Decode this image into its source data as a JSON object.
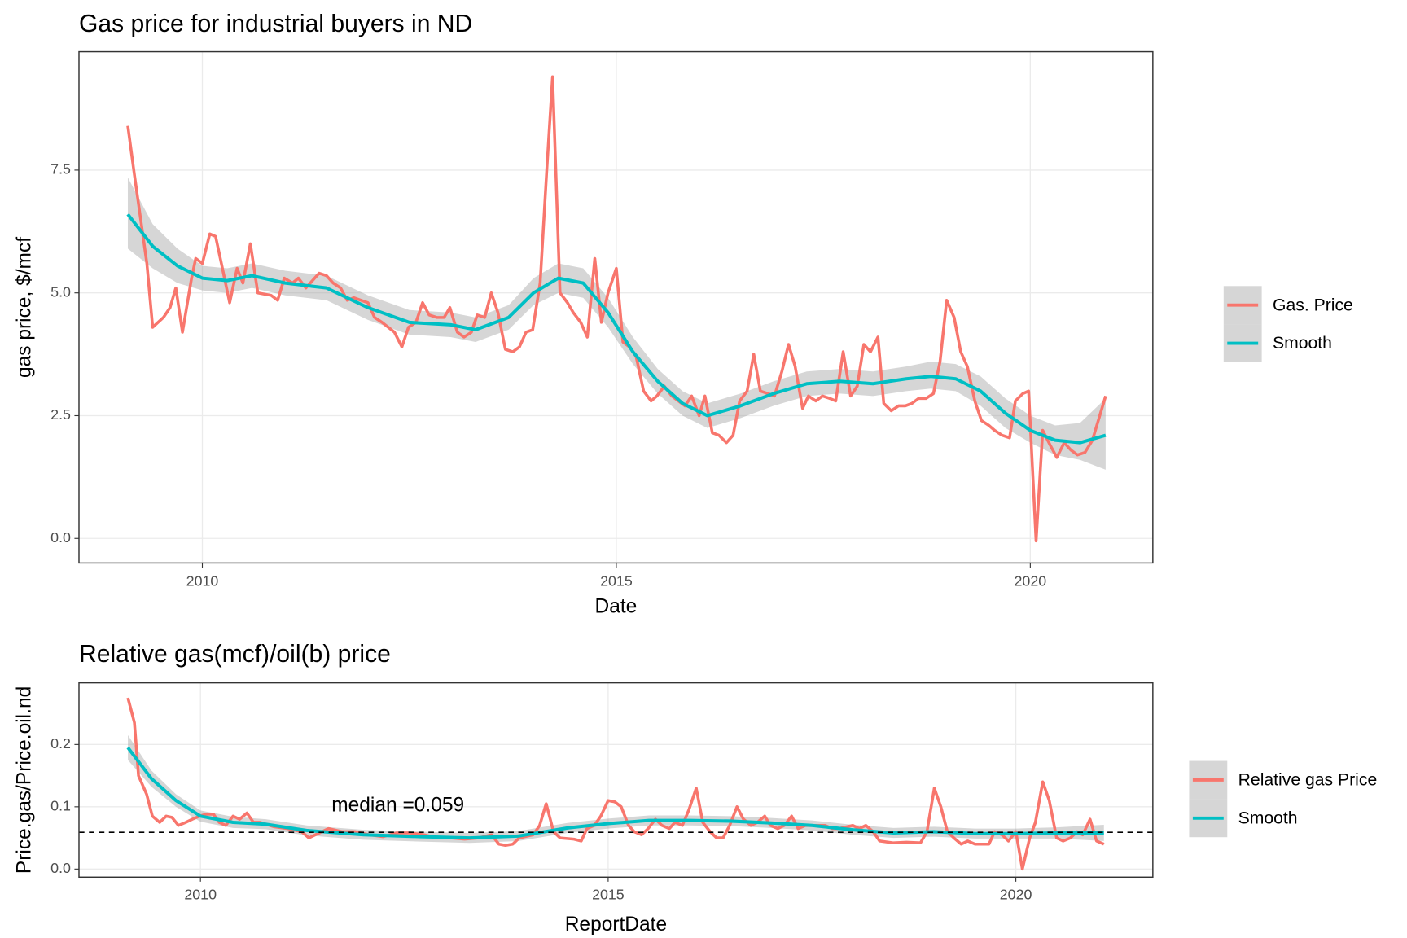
{
  "chart_data": [
    {
      "type": "line",
      "title": "Gas price for industrial buyers in ND",
      "xlabel": "Date",
      "ylabel": "gas price, $/mcf",
      "xlim": [
        2008.51,
        2021.48
      ],
      "ylim": [
        -0.5,
        9.91
      ],
      "xticks": [
        2010,
        2015,
        2020
      ],
      "yticks": [
        {
          "value": 0,
          "label": "0.0"
        },
        2.5,
        {
          "value": 5,
          "label": "5.0"
        },
        7.5
      ],
      "grid": true,
      "legend": "right",
      "series": [
        {
          "name": "Gas. Price",
          "color": "#F8766D",
          "x": [
            2009.1,
            2009.18,
            2009.23,
            2009.33,
            2009.4,
            2009.53,
            2009.61,
            2009.68,
            2009.76,
            2009.87,
            2009.92,
            2010.0,
            2010.09,
            2010.16,
            2010.23,
            2010.33,
            2010.42,
            2010.49,
            2010.58,
            2010.67,
            2010.83,
            2010.91,
            2010.99,
            2011.09,
            2011.16,
            2011.25,
            2011.41,
            2011.5,
            2011.58,
            2011.67,
            2011.75,
            2011.83,
            2012.0,
            2012.08,
            2012.17,
            2012.32,
            2012.41,
            2012.49,
            2012.58,
            2012.66,
            2012.74,
            2012.83,
            2012.92,
            2012.99,
            2013.08,
            2013.16,
            2013.25,
            2013.32,
            2013.41,
            2013.49,
            2013.57,
            2013.66,
            2013.75,
            2013.83,
            2013.91,
            2013.99,
            2014.08,
            2014.16,
            2014.23,
            2014.32,
            2014.41,
            2014.48,
            2014.57,
            2014.65,
            2014.74,
            2014.82,
            2014.9,
            2015.0,
            2015.08,
            2015.16,
            2015.24,
            2015.33,
            2015.42,
            2015.49,
            2015.58,
            2015.67,
            2015.75,
            2015.83,
            2015.91,
            2016.0,
            2016.07,
            2016.16,
            2016.24,
            2016.33,
            2016.41,
            2016.49,
            2016.58,
            2016.66,
            2016.74,
            2016.83,
            2016.91,
            2017.0,
            2017.08,
            2017.16,
            2017.25,
            2017.32,
            2017.41,
            2017.49,
            2017.58,
            2017.65,
            2017.74,
            2017.83,
            2017.91,
            2017.99,
            2018.07,
            2018.16,
            2018.23,
            2018.32,
            2018.41,
            2018.49,
            2018.57,
            2018.65,
            2018.74,
            2018.83,
            2018.91,
            2018.99,
            2019.08,
            2019.16,
            2019.24,
            2019.33,
            2019.41,
            2019.5,
            2019.57,
            2019.66,
            2019.75,
            2019.82,
            2019.91,
            2019.98,
            2020.07,
            2020.15,
            2020.24,
            2020.32,
            2020.41,
            2020.49,
            2020.57,
            2020.66,
            2020.75,
            2020.91
          ],
          "values": [
            8.4,
            7.4,
            6.8,
            5.6,
            4.3,
            4.5,
            4.7,
            5.1,
            4.2,
            5.3,
            5.7,
            5.6,
            6.2,
            6.15,
            5.6,
            4.8,
            5.5,
            5.2,
            6.0,
            5.0,
            4.95,
            4.85,
            5.3,
            5.2,
            5.3,
            5.1,
            5.4,
            5.35,
            5.2,
            5.1,
            4.85,
            4.9,
            4.8,
            4.5,
            4.4,
            4.2,
            3.9,
            4.3,
            4.4,
            4.8,
            4.55,
            4.5,
            4.5,
            4.7,
            4.2,
            4.1,
            4.2,
            4.55,
            4.5,
            5.0,
            4.6,
            3.85,
            3.8,
            3.9,
            4.2,
            4.25,
            5.2,
            7.5,
            9.4,
            5.0,
            4.8,
            4.6,
            4.4,
            4.1,
            5.7,
            4.4,
            5.0,
            5.5,
            4.0,
            3.9,
            3.7,
            3.0,
            2.8,
            2.9,
            3.1,
            2.9,
            2.8,
            2.7,
            2.9,
            2.5,
            2.9,
            2.15,
            2.1,
            1.95,
            2.1,
            2.8,
            3.0,
            3.75,
            3.0,
            2.95,
            2.9,
            3.4,
            3.95,
            3.5,
            2.65,
            2.9,
            2.8,
            2.9,
            2.85,
            2.8,
            3.8,
            2.9,
            3.1,
            3.95,
            3.8,
            4.1,
            2.75,
            2.6,
            2.7,
            2.7,
            2.75,
            2.85,
            2.85,
            2.95,
            3.6,
            4.85,
            4.5,
            3.8,
            3.5,
            2.8,
            2.4,
            2.3,
            2.2,
            2.1,
            2.05,
            2.8,
            2.95,
            3.0,
            -0.05,
            2.2,
            1.9,
            1.65,
            1.95,
            1.8,
            1.7,
            1.75,
            2.0,
            2.9
          ]
        },
        {
          "name": "Smooth",
          "color": "#00BFC4",
          "band_color": "#999999",
          "x": [
            2009.1,
            2009.4,
            2009.7,
            2010.0,
            2010.3,
            2010.6,
            2011.0,
            2011.5,
            2012.0,
            2012.5,
            2013.0,
            2013.3,
            2013.7,
            2014.0,
            2014.3,
            2014.6,
            2014.9,
            2015.2,
            2015.5,
            2015.8,
            2016.1,
            2016.5,
            2016.9,
            2017.3,
            2017.7,
            2018.1,
            2018.5,
            2018.8,
            2019.1,
            2019.4,
            2019.7,
            2020.0,
            2020.3,
            2020.6,
            2020.91
          ],
          "values": [
            6.6,
            5.95,
            5.55,
            5.3,
            5.25,
            5.35,
            5.2,
            5.1,
            4.7,
            4.4,
            4.35,
            4.25,
            4.5,
            5.0,
            5.3,
            5.2,
            4.6,
            3.8,
            3.2,
            2.75,
            2.5,
            2.7,
            2.95,
            3.15,
            3.2,
            3.15,
            3.25,
            3.3,
            3.25,
            3.0,
            2.55,
            2.2,
            2.0,
            1.95,
            2.1
          ],
          "lower": [
            5.9,
            5.5,
            5.2,
            5.05,
            5.0,
            5.1,
            4.95,
            4.85,
            4.45,
            4.15,
            4.1,
            4.0,
            4.25,
            4.75,
            5.0,
            4.9,
            4.3,
            3.55,
            2.95,
            2.5,
            2.25,
            2.45,
            2.7,
            2.9,
            2.95,
            2.9,
            3.0,
            3.05,
            3.0,
            2.7,
            2.25,
            1.95,
            1.7,
            1.6,
            1.4
          ],
          "upper": [
            7.35,
            6.4,
            5.9,
            5.55,
            5.5,
            5.6,
            5.45,
            5.35,
            4.95,
            4.65,
            4.6,
            4.5,
            4.75,
            5.3,
            5.6,
            5.5,
            4.9,
            4.1,
            3.45,
            3.0,
            2.75,
            2.95,
            3.2,
            3.4,
            3.45,
            3.4,
            3.5,
            3.6,
            3.55,
            3.3,
            2.85,
            2.5,
            2.3,
            2.35,
            2.85
          ]
        }
      ]
    },
    {
      "type": "line",
      "title": "Relative gas(mcf)/oil(b) price",
      "xlabel": "ReportDate",
      "ylabel": "Price.gas/Price.oil.nd",
      "xlim": [
        2008.51,
        2021.68
      ],
      "ylim": [
        -0.013,
        0.299
      ],
      "xticks": [
        2010,
        2015,
        2020
      ],
      "yticks": [
        {
          "value": 0,
          "label": "0.0"
        },
        0.1,
        0.2
      ],
      "grid": true,
      "legend": "right",
      "hline": 0.059,
      "annotation": "median =0.059",
      "series": [
        {
          "name": "Relative gas Price",
          "color": "#F8766D",
          "x": [
            2009.11,
            2009.19,
            2009.24,
            2009.34,
            2009.41,
            2009.5,
            2009.58,
            2009.65,
            2009.73,
            2009.82,
            2009.9,
            2009.99,
            2010.07,
            2010.16,
            2010.23,
            2010.31,
            2010.4,
            2010.48,
            2010.57,
            2010.65,
            2010.73,
            2010.9,
            2011.07,
            2011.24,
            2011.33,
            2011.41,
            2011.57,
            2011.74,
            2011.9,
            2012.07,
            2012.24,
            2012.41,
            2012.57,
            2012.74,
            2012.91,
            2013.07,
            2013.24,
            2013.41,
            2013.57,
            2013.66,
            2013.74,
            2013.83,
            2013.91,
            2014.08,
            2014.16,
            2014.24,
            2014.33,
            2014.41,
            2014.58,
            2014.67,
            2014.74,
            2014.83,
            2014.91,
            2015.0,
            2015.08,
            2015.16,
            2015.25,
            2015.32,
            2015.41,
            2015.49,
            2015.58,
            2015.66,
            2015.75,
            2015.82,
            2015.91,
            2015.99,
            2016.08,
            2016.16,
            2016.25,
            2016.33,
            2016.41,
            2016.49,
            2016.58,
            2016.66,
            2016.75,
            2016.83,
            2016.92,
            2016.99,
            2017.08,
            2017.16,
            2017.25,
            2017.33,
            2017.42,
            2017.49,
            2017.66,
            2017.75,
            2017.83,
            2018.0,
            2018.08,
            2018.16,
            2018.25,
            2018.33,
            2018.5,
            2018.66,
            2018.83,
            2018.91,
            2019.0,
            2019.08,
            2019.16,
            2019.24,
            2019.33,
            2019.41,
            2019.5,
            2019.58,
            2019.67,
            2019.74,
            2019.83,
            2019.91,
            2020.0,
            2020.08,
            2020.17,
            2020.24,
            2020.33,
            2020.41,
            2020.5,
            2020.58,
            2020.67,
            2020.75,
            2020.82,
            2020.91,
            2020.99,
            2021.08
          ],
          "values": [
            0.275,
            0.235,
            0.15,
            0.12,
            0.085,
            0.075,
            0.085,
            0.083,
            0.07,
            0.075,
            0.08,
            0.085,
            0.088,
            0.088,
            0.075,
            0.07,
            0.085,
            0.08,
            0.09,
            0.075,
            0.075,
            0.068,
            0.065,
            0.06,
            0.05,
            0.055,
            0.065,
            0.06,
            0.06,
            0.055,
            0.052,
            0.058,
            0.058,
            0.055,
            0.05,
            0.05,
            0.048,
            0.05,
            0.055,
            0.04,
            0.038,
            0.04,
            0.05,
            0.055,
            0.07,
            0.105,
            0.06,
            0.05,
            0.048,
            0.045,
            0.065,
            0.07,
            0.085,
            0.11,
            0.108,
            0.1,
            0.07,
            0.06,
            0.055,
            0.065,
            0.08,
            0.07,
            0.065,
            0.075,
            0.07,
            0.095,
            0.13,
            0.075,
            0.06,
            0.05,
            0.05,
            0.07,
            0.1,
            0.08,
            0.07,
            0.075,
            0.085,
            0.07,
            0.065,
            0.07,
            0.085,
            0.065,
            0.07,
            0.07,
            0.07,
            0.065,
            0.065,
            0.07,
            0.065,
            0.07,
            0.06,
            0.045,
            0.042,
            0.043,
            0.042,
            0.06,
            0.13,
            0.1,
            0.06,
            0.05,
            0.04,
            0.045,
            0.04,
            0.04,
            0.04,
            0.06,
            0.055,
            0.045,
            0.06,
            0.0,
            0.05,
            0.075,
            0.14,
            0.11,
            0.05,
            0.045,
            0.05,
            0.06,
            0.055,
            0.08,
            0.045,
            0.04
          ]
        },
        {
          "name": "Smooth",
          "color": "#00BFC4",
          "band_color": "#999999",
          "x": [
            2009.11,
            2009.4,
            2009.7,
            2010.0,
            2010.4,
            2010.8,
            2011.3,
            2012.0,
            2012.7,
            2013.3,
            2013.9,
            2014.5,
            2015.0,
            2015.5,
            2016.0,
            2016.5,
            2017.0,
            2017.5,
            2018.0,
            2018.5,
            2019.0,
            2019.5,
            2020.0,
            2020.5,
            2021.08
          ],
          "values": [
            0.195,
            0.145,
            0.11,
            0.085,
            0.075,
            0.072,
            0.062,
            0.055,
            0.052,
            0.05,
            0.053,
            0.066,
            0.073,
            0.078,
            0.078,
            0.077,
            0.074,
            0.07,
            0.063,
            0.058,
            0.06,
            0.057,
            0.057,
            0.058,
            0.058
          ],
          "lower": [
            0.175,
            0.132,
            0.1,
            0.076,
            0.066,
            0.064,
            0.054,
            0.047,
            0.044,
            0.042,
            0.045,
            0.058,
            0.065,
            0.07,
            0.07,
            0.069,
            0.066,
            0.062,
            0.055,
            0.05,
            0.052,
            0.049,
            0.049,
            0.049,
            0.045
          ],
          "upper": [
            0.215,
            0.158,
            0.12,
            0.094,
            0.084,
            0.08,
            0.07,
            0.063,
            0.06,
            0.058,
            0.061,
            0.074,
            0.081,
            0.086,
            0.086,
            0.085,
            0.082,
            0.078,
            0.071,
            0.066,
            0.068,
            0.065,
            0.065,
            0.067,
            0.071
          ]
        }
      ]
    }
  ]
}
